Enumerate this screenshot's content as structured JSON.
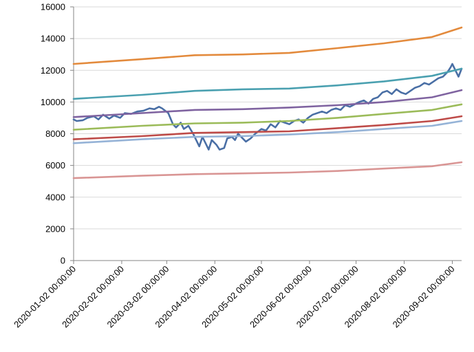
{
  "chart_data": {
    "type": "line",
    "title": "",
    "xlabel": "",
    "ylabel": "",
    "x_start": "2020-01-02",
    "x_end": "2020-09-08",
    "ylim": [
      0,
      16000
    ],
    "yticks": [
      0,
      2000,
      4000,
      6000,
      8000,
      10000,
      12000,
      14000,
      16000
    ],
    "xticks": [
      {
        "date": "2020-01-02",
        "label": "2020-01-02 00:00:00"
      },
      {
        "date": "2020-02-02",
        "label": "2020-02-02 00:00:00"
      },
      {
        "date": "2020-03-02",
        "label": "2020-03-02 00:00:00"
      },
      {
        "date": "2020-04-02",
        "label": "2020-04-02 00:00:00"
      },
      {
        "date": "2020-05-02",
        "label": "2020-05-02 00:00:00"
      },
      {
        "date": "2020-06-02",
        "label": "2020-06-02 00:00:00"
      },
      {
        "date": "2020-07-02",
        "label": "2020-07-02 00:00:00"
      },
      {
        "date": "2020-08-02",
        "label": "2020-08-02 00:00:00"
      },
      {
        "date": "2020-09-02",
        "label": "2020-09-02 00:00:00"
      }
    ],
    "gridlines": "horizontal",
    "legend": "none",
    "series": [
      {
        "color": "#4a6fa5",
        "points": [
          [
            "2020-01-02",
            8900
          ],
          [
            "2020-01-04",
            8800
          ],
          [
            "2020-01-08",
            8850
          ],
          [
            "2020-01-11",
            9000
          ],
          [
            "2020-01-15",
            9100
          ],
          [
            "2020-01-18",
            8900
          ],
          [
            "2020-01-21",
            9200
          ],
          [
            "2020-01-25",
            8950
          ],
          [
            "2020-01-28",
            9150
          ],
          [
            "2020-02-01",
            9000
          ],
          [
            "2020-02-04",
            9300
          ],
          [
            "2020-02-08",
            9250
          ],
          [
            "2020-02-12",
            9400
          ],
          [
            "2020-02-16",
            9450
          ],
          [
            "2020-02-20",
            9600
          ],
          [
            "2020-02-23",
            9550
          ],
          [
            "2020-02-26",
            9700
          ],
          [
            "2020-02-28",
            9600
          ],
          [
            "2020-03-03",
            9300
          ],
          [
            "2020-03-06",
            8600
          ],
          [
            "2020-03-08",
            8400
          ],
          [
            "2020-03-11",
            8700
          ],
          [
            "2020-03-13",
            8300
          ],
          [
            "2020-03-16",
            8500
          ],
          [
            "2020-03-19",
            8000
          ],
          [
            "2020-03-21",
            7600
          ],
          [
            "2020-03-23",
            7200
          ],
          [
            "2020-03-25",
            7800
          ],
          [
            "2020-03-27",
            7400
          ],
          [
            "2020-03-29",
            7000
          ],
          [
            "2020-03-31",
            7600
          ],
          [
            "2020-04-03",
            7300
          ],
          [
            "2020-04-05",
            7000
          ],
          [
            "2020-04-08",
            7100
          ],
          [
            "2020-04-10",
            7700
          ],
          [
            "2020-04-13",
            7800
          ],
          [
            "2020-04-15",
            7600
          ],
          [
            "2020-04-17",
            8000
          ],
          [
            "2020-04-20",
            7700
          ],
          [
            "2020-04-22",
            7500
          ],
          [
            "2020-04-25",
            7700
          ],
          [
            "2020-04-28",
            8000
          ],
          [
            "2020-05-02",
            8300
          ],
          [
            "2020-05-05",
            8200
          ],
          [
            "2020-05-08",
            8600
          ],
          [
            "2020-05-11",
            8400
          ],
          [
            "2020-05-14",
            8800
          ],
          [
            "2020-05-17",
            8700
          ],
          [
            "2020-05-20",
            8600
          ],
          [
            "2020-05-23",
            8800
          ],
          [
            "2020-05-26",
            8900
          ],
          [
            "2020-05-29",
            8700
          ],
          [
            "2020-06-01",
            9000
          ],
          [
            "2020-06-04",
            9200
          ],
          [
            "2020-06-07",
            9300
          ],
          [
            "2020-06-10",
            9400
          ],
          [
            "2020-06-13",
            9300
          ],
          [
            "2020-06-16",
            9500
          ],
          [
            "2020-06-19",
            9600
          ],
          [
            "2020-06-22",
            9500
          ],
          [
            "2020-06-25",
            9800
          ],
          [
            "2020-06-28",
            9700
          ],
          [
            "2020-07-01",
            9850
          ],
          [
            "2020-07-04",
            10000
          ],
          [
            "2020-07-07",
            10100
          ],
          [
            "2020-07-10",
            9900
          ],
          [
            "2020-07-13",
            10200
          ],
          [
            "2020-07-16",
            10300
          ],
          [
            "2020-07-19",
            10600
          ],
          [
            "2020-07-22",
            10700
          ],
          [
            "2020-07-25",
            10500
          ],
          [
            "2020-07-28",
            10800
          ],
          [
            "2020-07-31",
            10600
          ],
          [
            "2020-08-03",
            10500
          ],
          [
            "2020-08-06",
            10700
          ],
          [
            "2020-08-09",
            10900
          ],
          [
            "2020-08-12",
            11000
          ],
          [
            "2020-08-15",
            11200
          ],
          [
            "2020-08-18",
            11100
          ],
          [
            "2020-08-21",
            11300
          ],
          [
            "2020-08-24",
            11500
          ],
          [
            "2020-08-27",
            11600
          ],
          [
            "2020-08-30",
            11900
          ],
          [
            "2020-09-01",
            12200
          ],
          [
            "2020-09-02",
            12400
          ],
          [
            "2020-09-04",
            12000
          ],
          [
            "2020-09-06",
            11600
          ],
          [
            "2020-09-08",
            12100
          ]
        ]
      },
      {
        "color": "#e38a3c",
        "points": [
          [
            "2020-01-02",
            12400
          ],
          [
            "2020-02-15",
            12700
          ],
          [
            "2020-03-20",
            12950
          ],
          [
            "2020-04-20",
            13000
          ],
          [
            "2020-05-20",
            13100
          ],
          [
            "2020-06-20",
            13400
          ],
          [
            "2020-07-20",
            13700
          ],
          [
            "2020-08-20",
            14100
          ],
          [
            "2020-09-08",
            14700
          ]
        ]
      },
      {
        "color": "#4aa0b0",
        "points": [
          [
            "2020-01-02",
            10200
          ],
          [
            "2020-02-15",
            10450
          ],
          [
            "2020-03-20",
            10700
          ],
          [
            "2020-04-20",
            10800
          ],
          [
            "2020-05-20",
            10850
          ],
          [
            "2020-06-20",
            11050
          ],
          [
            "2020-07-20",
            11300
          ],
          [
            "2020-08-20",
            11650
          ],
          [
            "2020-09-08",
            12100
          ]
        ]
      },
      {
        "color": "#7f63a0",
        "points": [
          [
            "2020-01-02",
            9050
          ],
          [
            "2020-02-15",
            9300
          ],
          [
            "2020-03-20",
            9500
          ],
          [
            "2020-04-20",
            9550
          ],
          [
            "2020-05-20",
            9650
          ],
          [
            "2020-06-20",
            9800
          ],
          [
            "2020-07-20",
            10000
          ],
          [
            "2020-08-20",
            10300
          ],
          [
            "2020-09-08",
            10750
          ]
        ]
      },
      {
        "color": "#9bbb59",
        "points": [
          [
            "2020-01-02",
            8250
          ],
          [
            "2020-02-15",
            8500
          ],
          [
            "2020-03-20",
            8650
          ],
          [
            "2020-04-20",
            8700
          ],
          [
            "2020-05-20",
            8800
          ],
          [
            "2020-06-20",
            9000
          ],
          [
            "2020-07-20",
            9250
          ],
          [
            "2020-08-20",
            9500
          ],
          [
            "2020-09-08",
            9850
          ]
        ]
      },
      {
        "color": "#be4b48",
        "points": [
          [
            "2020-01-02",
            7650
          ],
          [
            "2020-02-15",
            7850
          ],
          [
            "2020-03-20",
            8050
          ],
          [
            "2020-04-20",
            8100
          ],
          [
            "2020-05-20",
            8150
          ],
          [
            "2020-06-20",
            8350
          ],
          [
            "2020-07-20",
            8550
          ],
          [
            "2020-08-20",
            8800
          ],
          [
            "2020-09-08",
            9100
          ]
        ]
      },
      {
        "color": "#95b3d7",
        "points": [
          [
            "2020-01-02",
            7400
          ],
          [
            "2020-02-15",
            7650
          ],
          [
            "2020-03-20",
            7800
          ],
          [
            "2020-04-20",
            7850
          ],
          [
            "2020-05-20",
            7950
          ],
          [
            "2020-06-20",
            8100
          ],
          [
            "2020-07-20",
            8300
          ],
          [
            "2020-08-20",
            8500
          ],
          [
            "2020-09-08",
            8800
          ]
        ]
      },
      {
        "color": "#d99594",
        "points": [
          [
            "2020-01-02",
            5200
          ],
          [
            "2020-02-15",
            5350
          ],
          [
            "2020-03-20",
            5450
          ],
          [
            "2020-04-20",
            5500
          ],
          [
            "2020-05-20",
            5550
          ],
          [
            "2020-06-20",
            5650
          ],
          [
            "2020-07-20",
            5800
          ],
          [
            "2020-08-20",
            5950
          ],
          [
            "2020-09-08",
            6200
          ]
        ]
      }
    ]
  }
}
